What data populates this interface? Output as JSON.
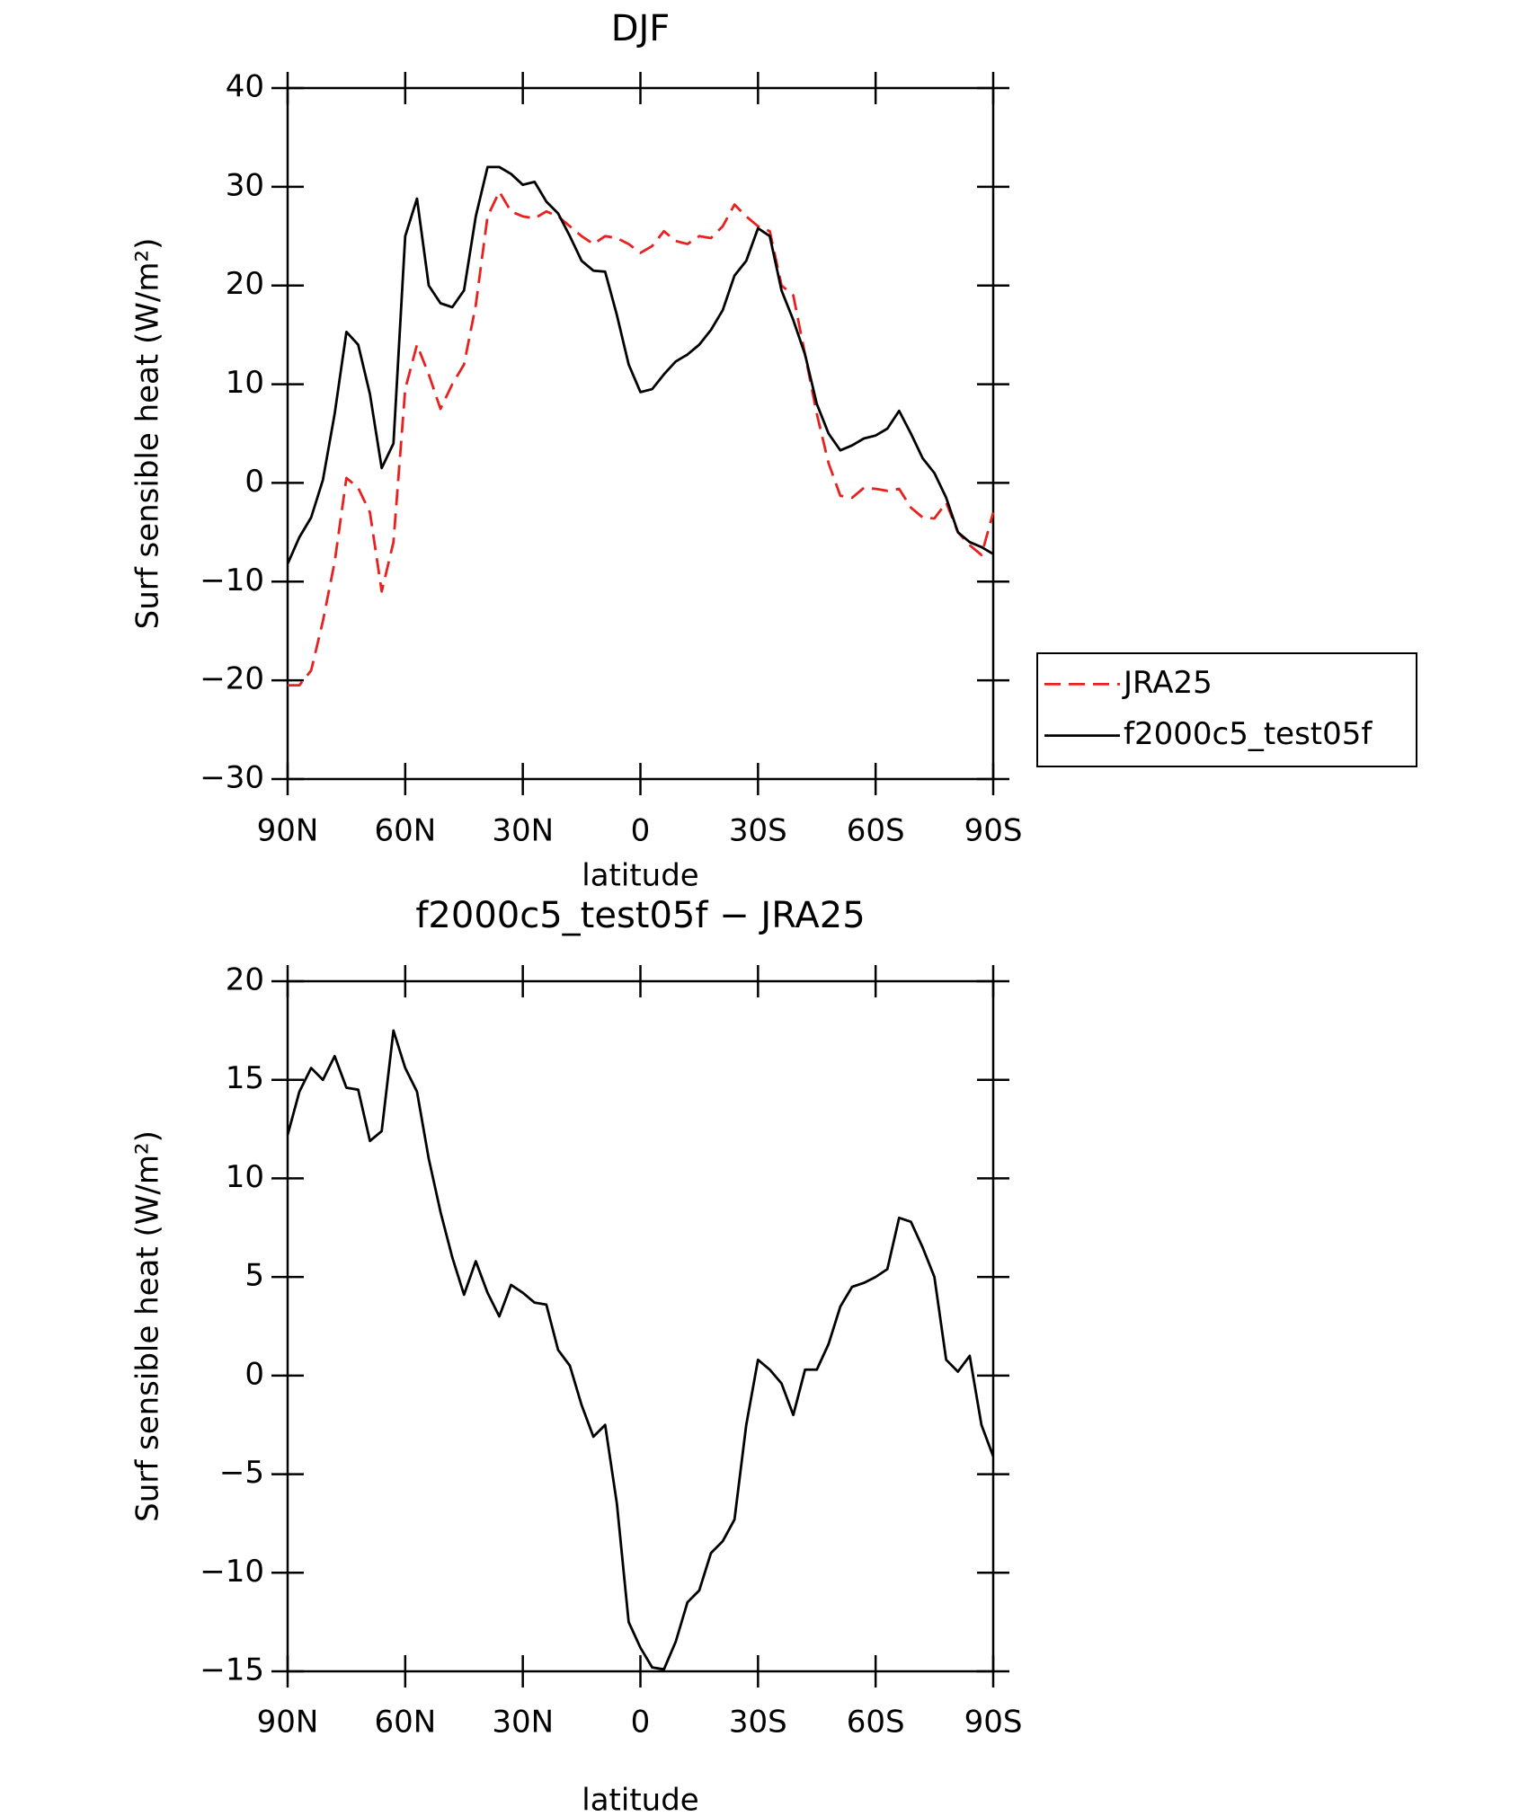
{
  "chart_data": [
    {
      "type": "line",
      "title": "DJF",
      "xlabel": "latitude",
      "ylabel": "Surf sensible heat (W/m²)",
      "x": [
        90,
        87,
        84,
        81,
        78,
        75,
        72,
        69,
        66,
        63,
        60,
        57,
        54,
        51,
        48,
        45,
        42,
        39,
        36,
        33,
        30,
        27,
        24,
        21,
        18,
        15,
        12,
        9,
        6,
        3,
        0,
        -3,
        -6,
        -9,
        -12,
        -15,
        -18,
        -21,
        -24,
        -27,
        -30,
        -33,
        -36,
        -39,
        -42,
        -45,
        -48,
        -51,
        -54,
        -57,
        -60,
        -63,
        -66,
        -69,
        -72,
        -75,
        -78,
        -81,
        -84,
        -87,
        -90
      ],
      "xlim": [
        90,
        -90
      ],
      "xticks": [
        {
          "value": 90,
          "label": "90N"
        },
        {
          "value": 60,
          "label": "60N"
        },
        {
          "value": 30,
          "label": "30N"
        },
        0,
        {
          "value": -30,
          "label": "30S"
        },
        {
          "value": -60,
          "label": "60S"
        },
        {
          "value": -90,
          "label": "90S"
        }
      ],
      "ylim": [
        -30,
        40
      ],
      "yticks": [
        {
          "value": -30,
          "label": "−30"
        },
        {
          "value": -20,
          "label": "−20"
        },
        {
          "value": -10,
          "label": "−10"
        },
        0,
        10,
        20,
        30,
        40
      ],
      "legend": "right",
      "series": [
        {
          "name": "JRA25",
          "color": "#e8201e",
          "dashed": true,
          "values": [
            -20.5,
            -20.5,
            -19,
            -14,
            -8,
            0.5,
            -0.5,
            -3,
            -11,
            -6,
            9.5,
            14,
            11,
            7.5,
            10,
            12,
            18,
            27,
            29.5,
            27.5,
            27,
            26.8,
            27.5,
            27,
            26,
            25,
            24.2,
            25,
            24.8,
            24.2,
            23.3,
            24,
            25.5,
            24.5,
            24.2,
            25,
            24.8,
            26,
            28.2,
            27,
            26,
            25.5,
            20,
            19,
            13,
            7,
            2,
            -1.3,
            -1.5,
            -0.5,
            -0.6,
            -0.8,
            -0.6,
            -2.5,
            -3.5,
            -3.6,
            -2,
            -5,
            -6.3,
            -7.3,
            -3
          ]
        },
        {
          "name": "f2000c5_test05f",
          "color": "#000000",
          "dashed": false,
          "values": [
            -8.2,
            -5.5,
            -3.5,
            0.3,
            7,
            15.3,
            14,
            9,
            1.5,
            4,
            25,
            28.8,
            20,
            18.2,
            17.8,
            19.5,
            27,
            32,
            32,
            31.3,
            30.2,
            30.5,
            28.5,
            27.3,
            25,
            22.5,
            21.5,
            21.4,
            17,
            12,
            9.2,
            9.5,
            11,
            12.3,
            13,
            14,
            15.5,
            17.5,
            21,
            22.5,
            25.8,
            25,
            19.5,
            16.5,
            13,
            8,
            5,
            3.3,
            3.8,
            4.5,
            4.8,
            5.5,
            7.3,
            5,
            2.5,
            1,
            -1.5,
            -5,
            -6,
            -6.5,
            -7.2
          ]
        }
      ]
    },
    {
      "type": "line",
      "title": "f2000c5_test05f − JRA25",
      "xlabel": "latitude",
      "ylabel": "Surf sensible heat (W/m²)",
      "x": [
        90,
        87,
        84,
        81,
        78,
        75,
        72,
        69,
        66,
        63,
        60,
        57,
        54,
        51,
        48,
        45,
        42,
        39,
        36,
        33,
        30,
        27,
        24,
        21,
        18,
        15,
        12,
        9,
        6,
        3,
        0,
        -3,
        -6,
        -9,
        -12,
        -15,
        -18,
        -21,
        -24,
        -27,
        -30,
        -33,
        -36,
        -39,
        -42,
        -45,
        -48,
        -51,
        -54,
        -57,
        -60,
        -63,
        -66,
        -69,
        -72,
        -75,
        -78,
        -81,
        -84,
        -87,
        -90
      ],
      "xlim": [
        90,
        -90
      ],
      "xticks": [
        {
          "value": 90,
          "label": "90N"
        },
        {
          "value": 60,
          "label": "60N"
        },
        {
          "value": 30,
          "label": "30N"
        },
        0,
        {
          "value": -30,
          "label": "30S"
        },
        {
          "value": -60,
          "label": "60S"
        },
        {
          "value": -90,
          "label": "90S"
        }
      ],
      "ylim": [
        -15,
        20
      ],
      "yticks": [
        {
          "value": -15,
          "label": "−15"
        },
        {
          "value": -10,
          "label": "−10"
        },
        {
          "value": -5,
          "label": "−5"
        },
        0,
        5,
        10,
        15,
        20
      ],
      "series": [
        {
          "color": "#000000",
          "dashed": false,
          "values": [
            12.2,
            14.4,
            15.6,
            15,
            16.2,
            14.6,
            14.5,
            11.9,
            12.4,
            17.5,
            15.6,
            14.4,
            11,
            8.3,
            6,
            4.1,
            5.8,
            4.2,
            3,
            4.6,
            4.2,
            3.7,
            3.6,
            1.3,
            0.5,
            -1.5,
            -3.1,
            -2.5,
            -6.5,
            -12.5,
            -13.8,
            -14.8,
            -14.9,
            -13.5,
            -11.5,
            -10.9,
            -9,
            -8.4,
            -7.3,
            -2.5,
            0.8,
            0.3,
            -0.4,
            -2,
            0.3,
            0.3,
            1.6,
            3.5,
            4.5,
            4.7,
            5,
            5.4,
            8,
            7.8,
            6.5,
            5,
            0.8,
            0.2,
            1,
            -2.5,
            -4.1
          ]
        }
      ]
    }
  ]
}
